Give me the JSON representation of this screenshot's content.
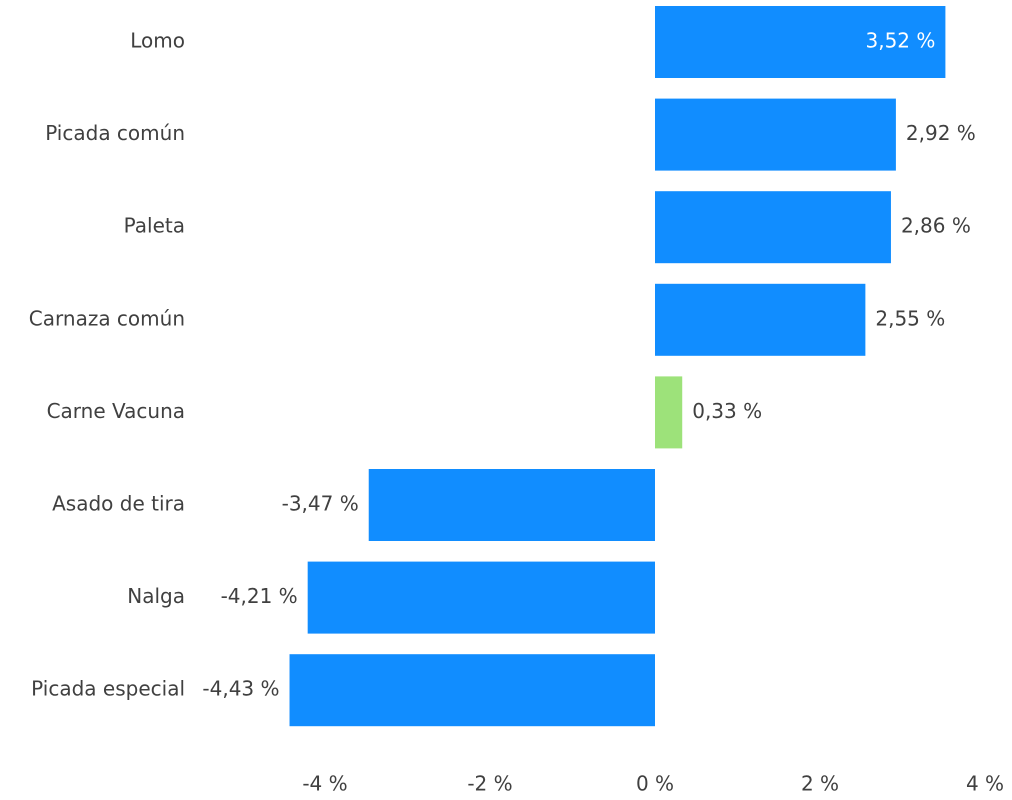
{
  "chart_data": {
    "type": "hbar",
    "categories": [
      "Lomo",
      "Picada común",
      "Paleta",
      "Carnaza común",
      "Carne Vacuna",
      "Asado de tira",
      "Nalga",
      "Picada especial"
    ],
    "values": [
      3.52,
      2.92,
      2.86,
      2.55,
      0.33,
      -3.47,
      -4.21,
      -4.43
    ],
    "value_labels": [
      "3,52 %",
      "2,92 %",
      "2,86 %",
      "2,55 %",
      "0,33 %",
      "-3,47 %",
      "-4,21 %",
      "-4,43 %"
    ],
    "colors": [
      "#118dff",
      "#118dff",
      "#118dff",
      "#118dff",
      "#9de27a",
      "#118dff",
      "#118dff",
      "#118dff"
    ],
    "xlim": [
      -4.5,
      4
    ],
    "xticks": [
      {
        "value": -4,
        "label": "-4 %"
      },
      {
        "value": -2,
        "label": "-2 %"
      },
      {
        "value": 0,
        "label": "0 %"
      },
      {
        "value": 2,
        "label": "2 %"
      },
      {
        "value": 4,
        "label": "4 %"
      }
    ],
    "grid": false
  }
}
